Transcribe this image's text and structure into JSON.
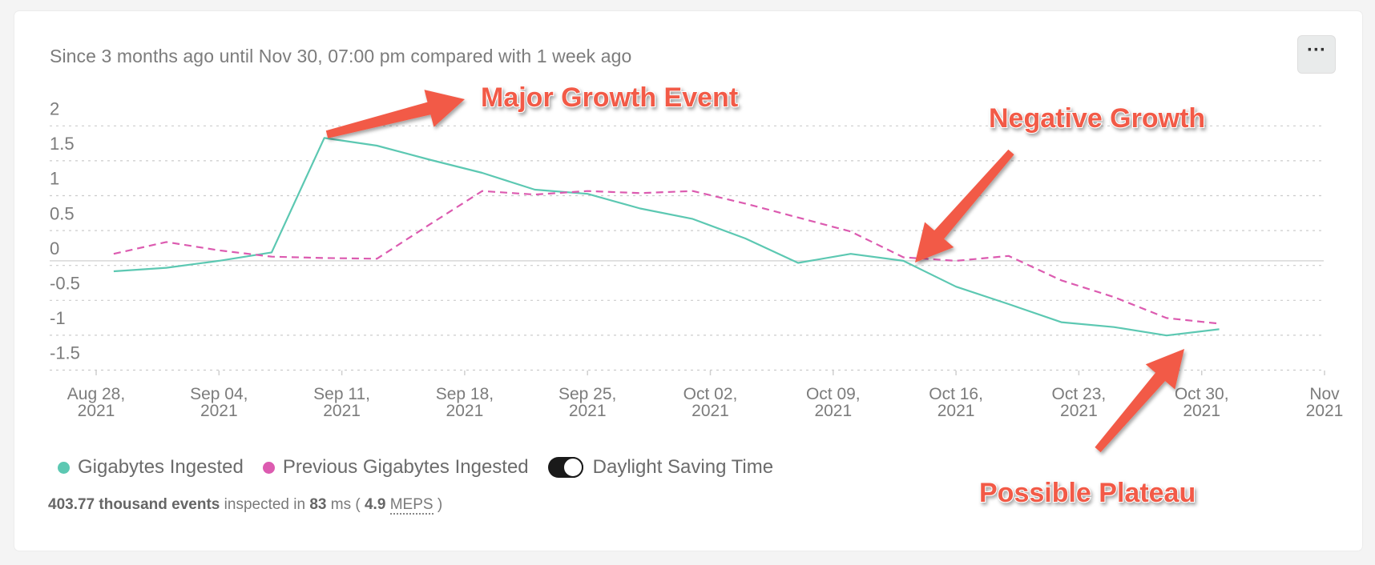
{
  "subtitle": "Since 3 months ago until Nov 30, 07:00 pm compared with 1 week ago",
  "menu_icon": "ellipsis-icon",
  "menu_label": "···",
  "colors": {
    "current": "#5cc8b2",
    "previous": "#dc5bb0",
    "annotation": "#f25a47",
    "grid": "#cccccc",
    "axis_text": "#7c7c7c"
  },
  "chart_data": {
    "type": "line",
    "ylim": [
      -1.75,
      2
    ],
    "y_ticks": [
      "2",
      "1.5",
      "1",
      "0.5",
      "0",
      "-0.5",
      "-1",
      "-1.5"
    ],
    "x_ticks": [
      {
        "line1": "Aug 28,",
        "line2": "2021"
      },
      {
        "line1": "Sep 04,",
        "line2": "2021"
      },
      {
        "line1": "Sep 11,",
        "line2": "2021"
      },
      {
        "line1": "Sep 18,",
        "line2": "2021"
      },
      {
        "line1": "Sep 25,",
        "line2": "2021"
      },
      {
        "line1": "Oct 02,",
        "line2": "2021"
      },
      {
        "line1": "Oct 09,",
        "line2": "2021"
      },
      {
        "line1": "Oct 16,",
        "line2": "2021"
      },
      {
        "line1": "Oct 23,",
        "line2": "2021"
      },
      {
        "line1": "Oct 30,",
        "line2": "2021"
      },
      {
        "line1": "Nov",
        "line2": "2021"
      }
    ],
    "x_dates": [
      "2021-08-29",
      "2021-09-01",
      "2021-09-04",
      "2021-09-07",
      "2021-09-10",
      "2021-09-13",
      "2021-09-16",
      "2021-09-19",
      "2021-09-22",
      "2021-09-25",
      "2021-09-28",
      "2021-10-01",
      "2021-10-04",
      "2021-10-07",
      "2021-10-10",
      "2021-10-13",
      "2021-10-16",
      "2021-10-19",
      "2021-10-22",
      "2021-10-25",
      "2021-10-28",
      "2021-10-31"
    ],
    "series": [
      {
        "name": "Gigabytes Ingested",
        "values": [
          -0.15,
          -0.1,
          0.0,
          0.12,
          1.76,
          1.65,
          1.45,
          1.26,
          1.02,
          0.96,
          0.75,
          0.6,
          0.32,
          -0.03,
          0.1,
          0.0,
          -0.37,
          -0.62,
          -0.88,
          -0.95,
          -1.07,
          -0.98
        ]
      },
      {
        "name": "Previous Gigabytes Ingested",
        "values": [
          0.1,
          0.27,
          0.15,
          0.06,
          0.04,
          0.03,
          0.52,
          1.0,
          0.95,
          1.0,
          0.97,
          1.0,
          0.82,
          0.62,
          0.42,
          0.05,
          0.0,
          0.07,
          -0.28,
          -0.52,
          -0.82,
          -0.9
        ]
      }
    ],
    "annotations": [
      {
        "text": "Major Growth Event"
      },
      {
        "text": "Negative Growth"
      },
      {
        "text": "Possible Plateau"
      }
    ]
  },
  "legend": {
    "current_label": "Gigabytes Ingested",
    "previous_label": "Previous Gigabytes Ingested",
    "dst_label": "Daylight Saving Time",
    "dst_on": true
  },
  "stats": {
    "events": "403.77 thousand events",
    "inspected_in": "inspected in",
    "ms_value": "83",
    "ms_unit": "ms (",
    "meps_value": "4.9",
    "meps_label": "MEPS",
    "close": ")"
  }
}
